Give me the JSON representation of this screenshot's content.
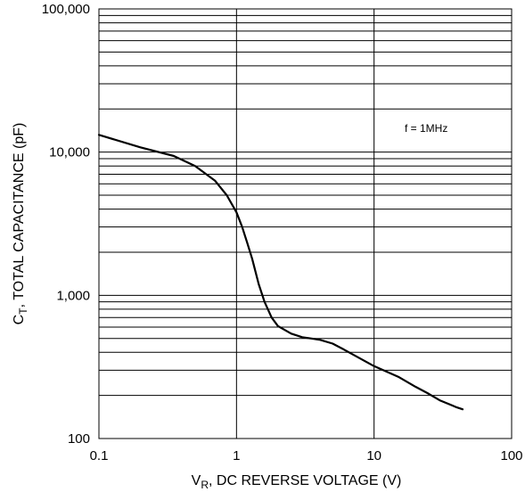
{
  "chart_data": {
    "type": "line",
    "x_scale": "log",
    "y_scale": "log",
    "xlim": [
      0.1,
      100
    ],
    "ylim": [
      100,
      100000
    ],
    "xticks": [
      "0.1",
      "1",
      "10",
      "100"
    ],
    "yticks": [
      "100",
      "1,000",
      "10,000",
      "100,000"
    ],
    "ylabel_parts": {
      "main": "C",
      "sub": "T",
      "rest": ", TOTAL CAPACITANCE (pF)"
    },
    "xlabel_parts": {
      "main": "V",
      "sub": "R",
      "rest": ", DC REVERSE VOLTAGE (V)"
    },
    "annotation": "f = 1MHz",
    "grid": true,
    "series": [
      {
        "x": [
          0.1,
          0.2,
          0.35,
          0.5,
          0.7,
          0.85,
          1.0,
          1.1,
          1.2,
          1.3,
          1.45,
          1.6,
          1.8,
          2.0,
          2.5,
          3.0,
          4.0,
          5.0,
          6.0,
          8.0,
          10.0,
          15.0,
          20.0,
          25.0,
          30.0,
          40.0,
          44.0
        ],
        "y": [
          13200,
          10800,
          9400,
          8000,
          6300,
          5000,
          3800,
          3000,
          2300,
          1800,
          1200,
          900,
          700,
          610,
          540,
          510,
          490,
          460,
          420,
          360,
          320,
          270,
          230,
          205,
          185,
          165,
          160
        ]
      }
    ]
  }
}
